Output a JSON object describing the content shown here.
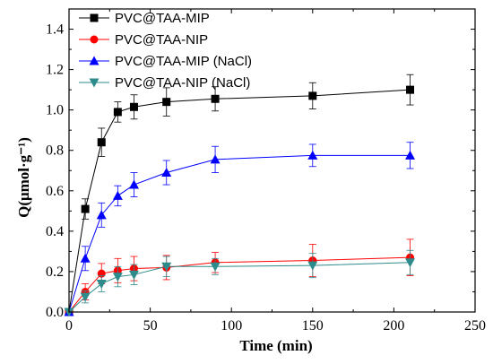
{
  "chart_data": {
    "type": "line",
    "xlabel": "Time (min)",
    "ylabel": "Q(μmol·g⁻¹)",
    "xlim": [
      0,
      250
    ],
    "ylim": [
      0,
      1.5
    ],
    "xticks": [
      "0",
      "50",
      "100",
      "150",
      "200",
      "250"
    ],
    "yticks": [
      "0.0",
      "0.2",
      "0.4",
      "0.6",
      "0.8",
      "1.0",
      "1.2",
      "1.4"
    ],
    "grid": false,
    "legend_position": "top-left",
    "x": [
      0,
      10,
      20,
      30,
      40,
      60,
      90,
      150,
      210
    ],
    "series": [
      {
        "name": "PVC@TAA-MIP",
        "color": "#000000",
        "marker": "square",
        "values": [
          0.0,
          0.51,
          0.84,
          0.99,
          1.015,
          1.04,
          1.055,
          1.07,
          1.1
        ],
        "errors": [
          0.0,
          0.05,
          0.07,
          0.05,
          0.06,
          0.07,
          0.06,
          0.065,
          0.075
        ]
      },
      {
        "name": "PVC@TAA-NIP",
        "color": "#ff0000",
        "marker": "circle",
        "values": [
          0.0,
          0.1,
          0.19,
          0.205,
          0.215,
          0.22,
          0.245,
          0.255,
          0.27
        ],
        "errors": [
          0.0,
          0.04,
          0.05,
          0.06,
          0.06,
          0.06,
          0.05,
          0.08,
          0.09
        ]
      },
      {
        "name": "PVC@TAA-MIP (NaCl)",
        "color": "#0000ff",
        "marker": "triangle-up",
        "values": [
          0.0,
          0.265,
          0.48,
          0.575,
          0.63,
          0.69,
          0.755,
          0.775,
          0.775
        ],
        "errors": [
          0.0,
          0.06,
          0.06,
          0.05,
          0.06,
          0.06,
          0.065,
          0.055,
          0.065
        ]
      },
      {
        "name": "PVC@TAA-NIP (NaCl)",
        "color": "#2e8b8b",
        "marker": "triangle-down",
        "values": [
          0.0,
          0.075,
          0.14,
          0.175,
          0.185,
          0.225,
          0.225,
          0.23,
          0.245
        ],
        "errors": [
          0.0,
          0.03,
          0.04,
          0.05,
          0.05,
          0.05,
          0.04,
          0.06,
          0.06
        ]
      }
    ]
  }
}
